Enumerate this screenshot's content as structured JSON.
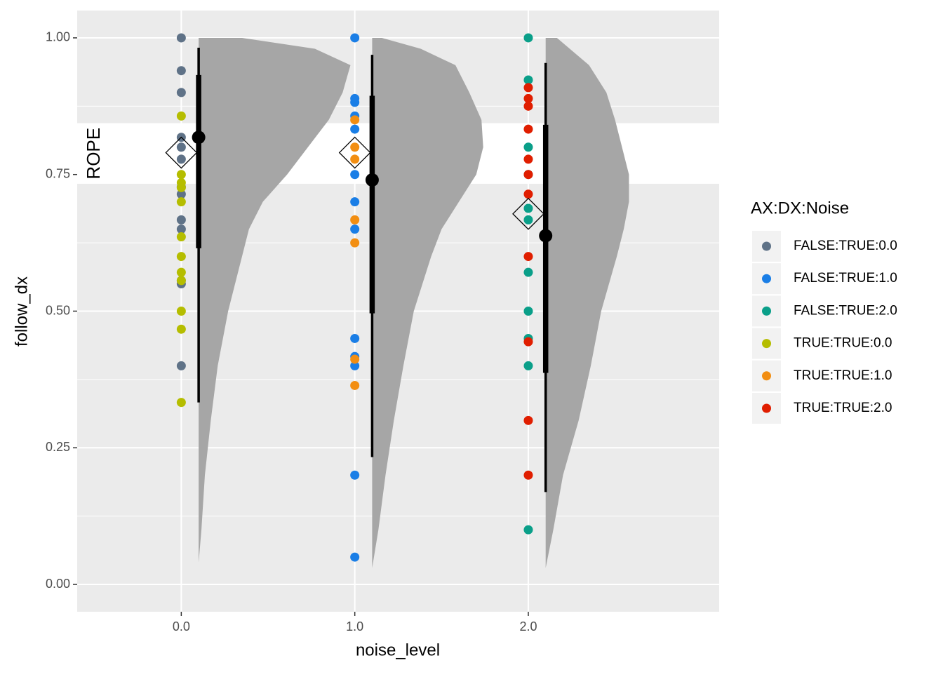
{
  "chart_data": {
    "type": "scatter",
    "xlabel": "noise_level",
    "ylabel": "follow_dx",
    "xlim": [
      -0.6,
      3.1
    ],
    "ylim": [
      -0.05,
      1.05
    ],
    "xticks": [
      {
        "value": 0,
        "label": "0.0"
      },
      {
        "value": 1,
        "label": "1.0"
      },
      {
        "value": 2,
        "label": "2.0"
      }
    ],
    "yticks": [
      {
        "value": 0,
        "label": "0.00"
      },
      {
        "value": 0.25,
        "label": "0.25"
      },
      {
        "value": 0.5,
        "label": "0.50"
      },
      {
        "value": 0.75,
        "label": "0.75"
      },
      {
        "value": 1,
        "label": "1.00"
      }
    ],
    "yminorticks": [
      0.125,
      0.375,
      0.625,
      0.875
    ],
    "grid": true,
    "rope": {
      "label": "ROPE",
      "range": [
        0.733,
        0.844
      ]
    },
    "legend": "right",
    "legend_title": "AX:DX:Noise",
    "series": [
      {
        "name": "FALSE:TRUE:0.0",
        "color": "#5f7287",
        "x": [
          0,
          0,
          0,
          0,
          0,
          0,
          0,
          0,
          0,
          0,
          0,
          0,
          0
        ],
        "values": [
          1.0,
          0.94,
          0.9,
          0.818,
          0.8,
          0.778,
          0.727,
          0.714,
          0.667,
          0.65,
          0.556,
          0.55,
          0.4
        ]
      },
      {
        "name": "FALSE:TRUE:1.0",
        "color": "#1a7ee6",
        "x": [
          1,
          1,
          1,
          1,
          1,
          1,
          1,
          1,
          1,
          1,
          1,
          1,
          1
        ],
        "values": [
          1.0,
          0.889,
          0.882,
          0.857,
          0.833,
          0.75,
          0.7,
          0.65,
          0.45,
          0.417,
          0.4,
          0.2,
          0.05
        ]
      },
      {
        "name": "FALSE:TRUE:2.0",
        "color": "#0a9f89",
        "x": [
          2,
          2,
          2,
          2,
          2,
          2,
          2,
          2,
          2,
          2,
          2
        ],
        "values": [
          1.0,
          0.923,
          0.8,
          0.75,
          0.688,
          0.667,
          0.571,
          0.5,
          0.45,
          0.4,
          0.1
        ]
      },
      {
        "name": "TRUE:TRUE:0.0",
        "color": "#b5bd00",
        "x": [
          0,
          0,
          0,
          0,
          0,
          0,
          0,
          0,
          0,
          0,
          0,
          0
        ],
        "values": [
          0.857,
          0.75,
          0.735,
          0.726,
          0.7,
          0.636,
          0.6,
          0.571,
          0.556,
          0.5,
          0.467,
          0.333
        ]
      },
      {
        "name": "TRUE:TRUE:1.0",
        "color": "#f28e12",
        "x": [
          1,
          1,
          1,
          1,
          1,
          1,
          1
        ],
        "values": [
          0.85,
          0.8,
          0.778,
          0.667,
          0.625,
          0.412,
          0.364
        ]
      },
      {
        "name": "TRUE:TRUE:2.0",
        "color": "#e01e00",
        "x": [
          2,
          2,
          2,
          2,
          2,
          2,
          2,
          2,
          2,
          2,
          2
        ],
        "values": [
          0.909,
          0.889,
          0.875,
          0.833,
          0.778,
          0.75,
          0.714,
          0.6,
          0.444,
          0.3,
          0.2
        ]
      }
    ],
    "diamonds": {
      "x": [
        0,
        1,
        2
      ],
      "values": [
        0.79,
        0.79,
        0.678
      ]
    },
    "intervals": {
      "x": [
        0.1,
        1.1,
        2.1
      ],
      "values": [
        0.818,
        0.74,
        0.638
      ],
      "inner_low": [
        0.615,
        0.496,
        0.387
      ],
      "inner_high": [
        0.932,
        0.894,
        0.841
      ],
      "outer_low": [
        0.333,
        0.233,
        0.169
      ],
      "outer_high": [
        0.982,
        0.969,
        0.954
      ]
    },
    "densities": [
      {
        "x": 0.1,
        "y": [
          0.04,
          0.1,
          0.2,
          0.3,
          0.4,
          0.5,
          0.6,
          0.65,
          0.7,
          0.75,
          0.8,
          0.85,
          0.9,
          0.95,
          0.98,
          1.0
        ],
        "width": [
          0,
          0.016,
          0.036,
          0.07,
          0.11,
          0.17,
          0.25,
          0.29,
          0.37,
          0.51,
          0.63,
          0.75,
          0.83,
          0.875,
          0.67,
          0.25
        ]
      },
      {
        "x": 1.1,
        "y": [
          0.03,
          0.1,
          0.2,
          0.3,
          0.4,
          0.5,
          0.6,
          0.65,
          0.7,
          0.75,
          0.8,
          0.85,
          0.9,
          0.95,
          0.98,
          1.0
        ],
        "width": [
          0,
          0.036,
          0.077,
          0.125,
          0.18,
          0.24,
          0.34,
          0.4,
          0.5,
          0.6,
          0.64,
          0.63,
          0.56,
          0.48,
          0.28,
          0.056
        ]
      },
      {
        "x": 2.1,
        "y": [
          0.03,
          0.1,
          0.2,
          0.3,
          0.4,
          0.5,
          0.6,
          0.65,
          0.7,
          0.75,
          0.8,
          0.85,
          0.9,
          0.95,
          1.0
        ],
        "width": [
          0,
          0.044,
          0.1,
          0.19,
          0.26,
          0.32,
          0.41,
          0.45,
          0.48,
          0.48,
          0.44,
          0.4,
          0.35,
          0.25,
          0.065
        ]
      }
    ]
  }
}
